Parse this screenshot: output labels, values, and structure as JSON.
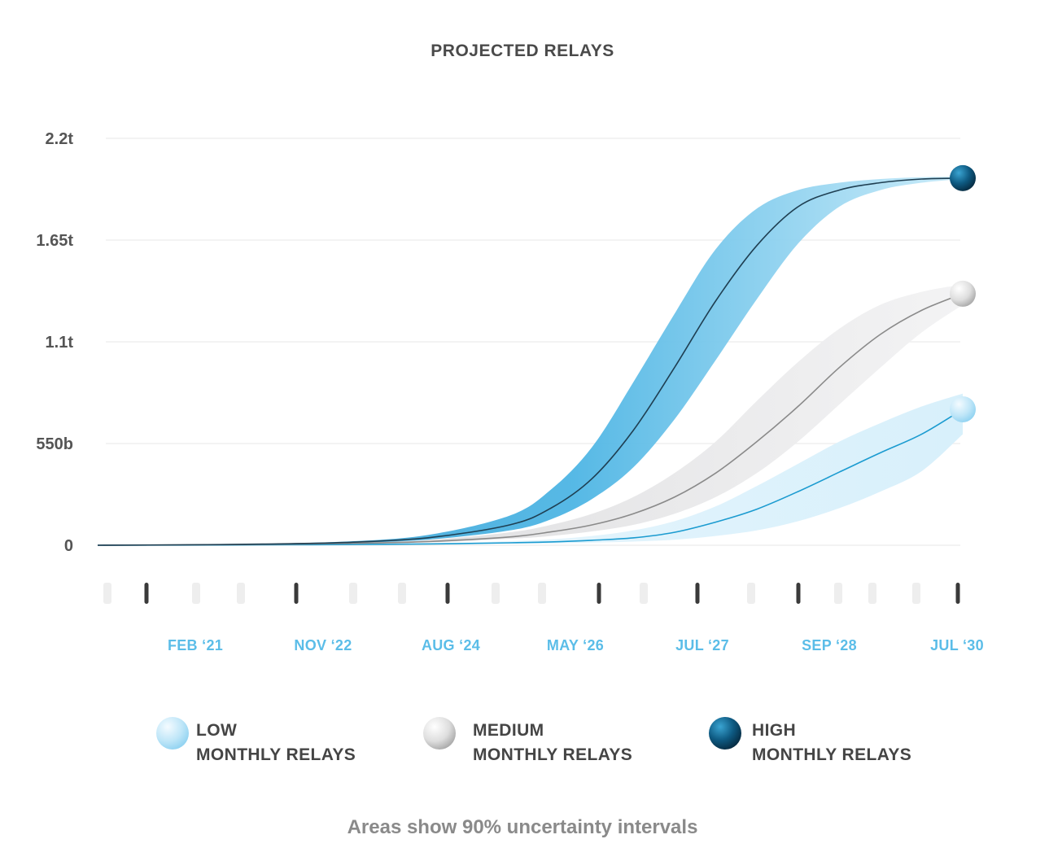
{
  "chart_data": {
    "type": "area",
    "title": "PROJECTED RELAYS",
    "xlabel": "",
    "ylabel": "",
    "y_ticks": [
      {
        "label": "0",
        "value": 0
      },
      {
        "label": "550b",
        "value": 550
      },
      {
        "label": "1.1t",
        "value": 1100
      },
      {
        "label": "1.65t",
        "value": 1650
      },
      {
        "label": "2.2t",
        "value": 2200
      }
    ],
    "ylim": [
      0,
      2200
    ],
    "y_unit": "billions",
    "x_ticks": [
      "FEB ‘21",
      "NOV ‘22",
      "AUG ‘24",
      "MAY ‘26",
      "JUL ‘27",
      "SEP ‘28",
      "JUL ‘30"
    ],
    "x_range": [
      "2020",
      "JUL ‘30"
    ],
    "grid": true,
    "legend_position": "bottom",
    "series": [
      {
        "name": "LOW MONTHLY RELAYS",
        "color": "#1b9bd0",
        "band_color": "#e6f5fc",
        "end_marker": "light-blue",
        "x": [
          "2020.00",
          "2021.00",
          "2022.00",
          "2023.00",
          "2024.00",
          "2025.00",
          "2025.50",
          "2026.00",
          "2026.50",
          "2027.00",
          "2027.50",
          "2028.00",
          "2028.50",
          "2029.00",
          "2029.50",
          "2030.00",
          "2030.50"
        ],
        "values": [
          0,
          1,
          2,
          4,
          7,
          13,
          18,
          27,
          40,
          70,
          125,
          195,
          290,
          395,
          500,
          600,
          735
        ],
        "lower": [
          0,
          1,
          2,
          3,
          5,
          8,
          10,
          14,
          20,
          30,
          50,
          80,
          130,
          200,
          290,
          400,
          600
        ],
        "upper": [
          0,
          2,
          3,
          6,
          11,
          22,
          32,
          50,
          80,
          130,
          210,
          320,
          440,
          560,
          660,
          750,
          820
        ]
      },
      {
        "name": "MEDIUM MONTHLY RELAYS",
        "color": "#7a7a7a",
        "band_color": "#e5e5e7",
        "end_marker": "light-grey",
        "x": [
          "2020.00",
          "2021.00",
          "2022.00",
          "2023.00",
          "2024.00",
          "2025.00",
          "2025.50",
          "2026.00",
          "2026.50",
          "2027.00",
          "2027.50",
          "2028.00",
          "2028.50",
          "2029.00",
          "2029.50",
          "2030.00",
          "2030.50"
        ],
        "values": [
          0,
          2,
          5,
          10,
          20,
          45,
          72,
          110,
          170,
          260,
          390,
          560,
          750,
          960,
          1140,
          1270,
          1360
        ],
        "lower": [
          0,
          2,
          4,
          8,
          15,
          35,
          50,
          75,
          110,
          170,
          260,
          390,
          560,
          760,
          960,
          1150,
          1300
        ],
        "upper": [
          0,
          3,
          6,
          13,
          28,
          70,
          110,
          170,
          260,
          390,
          560,
          780,
          990,
          1170,
          1300,
          1370,
          1410
        ]
      },
      {
        "name": "HIGH MONTHLY RELAYS",
        "color": "#1a6080",
        "band_color": "#4db5e4",
        "end_marker": "dark-blue",
        "x": [
          "2020.00",
          "2021.00",
          "2022.00",
          "2023.00",
          "2024.00",
          "2025.00",
          "2025.50",
          "2026.00",
          "2026.50",
          "2027.00",
          "2027.50",
          "2028.00",
          "2028.50",
          "2029.00",
          "2029.50",
          "2030.00",
          "2030.50"
        ],
        "values": [
          0,
          2,
          6,
          15,
          40,
          110,
          200,
          360,
          620,
          960,
          1320,
          1620,
          1830,
          1920,
          1960,
          1980,
          1985
        ],
        "lower": [
          0,
          2,
          5,
          12,
          30,
          80,
          140,
          250,
          420,
          680,
          1000,
          1330,
          1630,
          1830,
          1920,
          1960,
          1980
        ],
        "upper": [
          0,
          3,
          8,
          20,
          55,
          160,
          300,
          530,
          880,
          1250,
          1600,
          1820,
          1920,
          1960,
          1980,
          1990,
          1992
        ]
      }
    ],
    "footnote": "Areas show 90% uncertainty intervals"
  },
  "legend": {
    "items": [
      {
        "line1": "LOW",
        "line2": "MONTHLY RELAYS",
        "marker": "light-blue"
      },
      {
        "line1": "MEDIUM",
        "line2": "MONTHLY RELAYS",
        "marker": "light-grey"
      },
      {
        "line1": "HIGH",
        "line2": "MONTHLY RELAYS",
        "marker": "dark-blue"
      }
    ]
  },
  "colors": {
    "tick_label_x": "#5bbde8",
    "tick_mark_major": "#3a3a3a",
    "tick_mark_minor": "#eeeeee",
    "gridline": "#efefef"
  }
}
